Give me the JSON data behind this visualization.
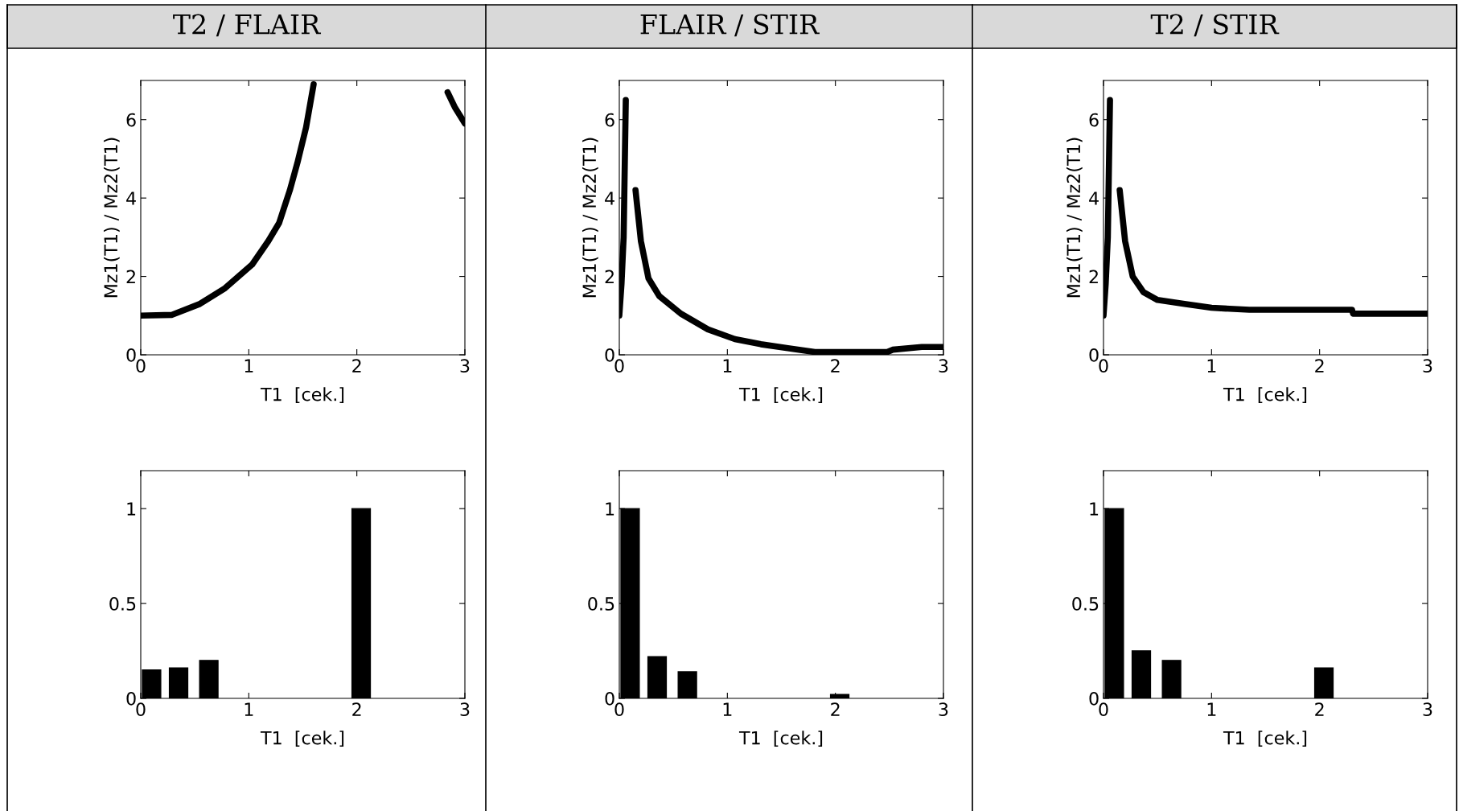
{
  "chart_data": [
    {
      "type": "line",
      "title": "T2 / FLAIR",
      "xlabel": "T1  [cek.]",
      "ylabel": "Mz1(T1) / Mz2(T1)",
      "xlim": [
        0,
        3
      ],
      "ylim": [
        0,
        7
      ],
      "xticks": [
        0,
        1,
        2,
        3
      ],
      "yticks": [
        0,
        2,
        4,
        6
      ],
      "grid": false,
      "marker": "none",
      "line_style": "solid",
      "series": [
        {
          "color": "#000000",
          "x": [
            0,
            0.29,
            0.54,
            0.78,
            1.03,
            1.18,
            1.28,
            1.38,
            1.45,
            1.53,
            1.6,
            1.62,
            2.8,
            2.84,
            2.91,
            3
          ],
          "values": [
            1,
            1.02,
            1.29,
            1.7,
            2.3,
            2.9,
            3.36,
            4.2,
            4.9,
            5.8,
            6.9,
            null,
            null,
            6.7,
            6.3,
            5.9
          ]
        }
      ]
    },
    {
      "type": "line",
      "title": "FLAIR / STIR",
      "xlabel": "T1  [cek.]",
      "ylabel": "Mz1(T1) / Mz2(T1)",
      "xlim": [
        0,
        3
      ],
      "ylim": [
        0,
        7
      ],
      "xticks": [
        0,
        1,
        2,
        3
      ],
      "yticks": [
        0,
        2,
        4,
        6
      ],
      "grid": false,
      "marker": "none",
      "line_style": "solid",
      "series": [
        {
          "color": "#000000",
          "x": [
            0,
            0.02,
            0.04,
            0.06,
            0.1,
            0.15,
            0.2,
            0.27,
            0.37,
            0.57,
            0.82,
            1.07,
            1.31,
            1.56,
            1.81,
            2.48,
            2.53,
            2.8,
            3
          ],
          "values": [
            1,
            1.8,
            3,
            6.5,
            null,
            4.2,
            2.9,
            1.95,
            1.5,
            1.05,
            0.65,
            0.4,
            0.27,
            0.17,
            0.07,
            0.07,
            0.13,
            0.2,
            0.2
          ]
        }
      ]
    },
    {
      "type": "line",
      "title": "T2 / STIR",
      "xlabel": "T1  [cek.]",
      "ylabel": "Mz1(T1) / Mz2(T1)",
      "xlim": [
        0,
        3
      ],
      "ylim": [
        0,
        7
      ],
      "xticks": [
        0,
        1,
        2,
        3
      ],
      "yticks": [
        0,
        2,
        4,
        6
      ],
      "grid": false,
      "marker": "none",
      "line_style": "solid",
      "series": [
        {
          "color": "#000000",
          "x": [
            0,
            0.02,
            0.04,
            0.06,
            0.1,
            0.15,
            0.2,
            0.27,
            0.37,
            0.5,
            0.75,
            1.0,
            1.35,
            2.3,
            2.31,
            3
          ],
          "values": [
            1,
            1.8,
            3,
            6.5,
            null,
            4.2,
            2.9,
            2.0,
            1.6,
            1.4,
            1.3,
            1.2,
            1.15,
            1.15,
            1.05,
            1.05
          ]
        }
      ]
    },
    {
      "type": "bar",
      "xlabel": "T1  [cek.]",
      "xlim": [
        0,
        3
      ],
      "ylim": [
        0,
        1.2
      ],
      "xticks": [
        0,
        1,
        2,
        3
      ],
      "yticks": [
        0,
        0.5,
        1
      ],
      "grid": false,
      "x": [
        0.1,
        0.35,
        0.63,
        2.04
      ],
      "values": [
        0.15,
        0.16,
        0.2,
        1.0
      ],
      "color": "#000000"
    },
    {
      "type": "bar",
      "xlabel": "T1  [cek.]",
      "xlim": [
        0,
        3
      ],
      "ylim": [
        0,
        1.2
      ],
      "xticks": [
        0,
        1,
        2,
        3
      ],
      "yticks": [
        0,
        0.5,
        1
      ],
      "grid": false,
      "x": [
        0.1,
        0.35,
        0.63,
        2.04
      ],
      "values": [
        1.0,
        0.22,
        0.14,
        0.02
      ],
      "color": "#000000"
    },
    {
      "type": "bar",
      "xlabel": "T1  [cek.]",
      "xlim": [
        0,
        3
      ],
      "ylim": [
        0,
        1.2
      ],
      "xticks": [
        0,
        1,
        2,
        3
      ],
      "yticks": [
        0,
        0.5,
        1
      ],
      "grid": false,
      "x": [
        0.1,
        0.35,
        0.63,
        2.04
      ],
      "values": [
        1.0,
        0.25,
        0.2,
        0.16
      ],
      "color": "#000000"
    }
  ]
}
